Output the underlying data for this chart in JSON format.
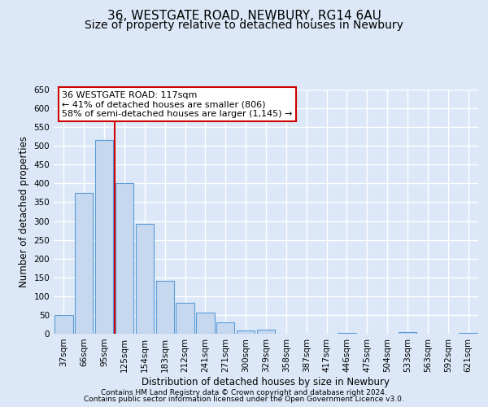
{
  "title_line1": "36, WESTGATE ROAD, NEWBURY, RG14 6AU",
  "title_line2": "Size of property relative to detached houses in Newbury",
  "xlabel": "Distribution of detached houses by size in Newbury",
  "ylabel": "Number of detached properties",
  "bar_labels": [
    "37sqm",
    "66sqm",
    "95sqm",
    "125sqm",
    "154sqm",
    "183sqm",
    "212sqm",
    "241sqm",
    "271sqm",
    "300sqm",
    "329sqm",
    "358sqm",
    "387sqm",
    "417sqm",
    "446sqm",
    "475sqm",
    "504sqm",
    "533sqm",
    "563sqm",
    "592sqm",
    "621sqm"
  ],
  "bar_values": [
    50,
    375,
    515,
    400,
    293,
    140,
    82,
    56,
    30,
    8,
    11,
    0,
    0,
    0,
    3,
    0,
    0,
    5,
    0,
    0,
    3
  ],
  "bar_color": "#c5d8f0",
  "bar_edge_color": "#5b9bd5",
  "annotation_box_text": "36 WESTGATE ROAD: 117sqm\n← 41% of detached houses are smaller (806)\n58% of semi-detached houses are larger (1,145) →",
  "annotation_box_color": "#ffffff",
  "annotation_box_edge_color": "#cc0000",
  "vline_x": 2.5,
  "vline_color": "#cc0000",
  "ylim": [
    0,
    650
  ],
  "yticks": [
    0,
    50,
    100,
    150,
    200,
    250,
    300,
    350,
    400,
    450,
    500,
    550,
    600,
    650
  ],
  "background_color": "#dce8f8",
  "plot_background_color": "#dce8f8",
  "grid_color": "#ffffff",
  "footer_line1": "Contains HM Land Registry data © Crown copyright and database right 2024.",
  "footer_line2": "Contains public sector information licensed under the Open Government Licence v3.0.",
  "title_fontsize": 11,
  "subtitle_fontsize": 10,
  "axis_label_fontsize": 8.5,
  "tick_fontsize": 7.5,
  "annotation_fontsize": 8,
  "footer_fontsize": 6.5
}
